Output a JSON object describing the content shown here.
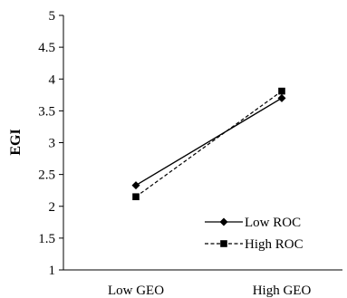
{
  "chart_data": {
    "type": "line",
    "title": "",
    "xlabel": "",
    "ylabel": "EGI",
    "categories": [
      "Low GEO",
      "High GEO"
    ],
    "ylim": [
      1,
      5
    ],
    "yticks": [
      "1",
      "1.5",
      "2",
      "2.5",
      "3",
      "3.5",
      "4",
      "4.5",
      "5"
    ],
    "grid": false,
    "legend_position": "bottom-right",
    "series": [
      {
        "name": "Low ROC",
        "values": [
          2.33,
          3.7
        ],
        "line_style": "solid",
        "marker": "diamond",
        "color": "#000000"
      },
      {
        "name": "High ROC",
        "values": [
          2.15,
          3.81
        ],
        "line_style": "dashed",
        "marker": "square",
        "color": "#000000"
      }
    ]
  }
}
